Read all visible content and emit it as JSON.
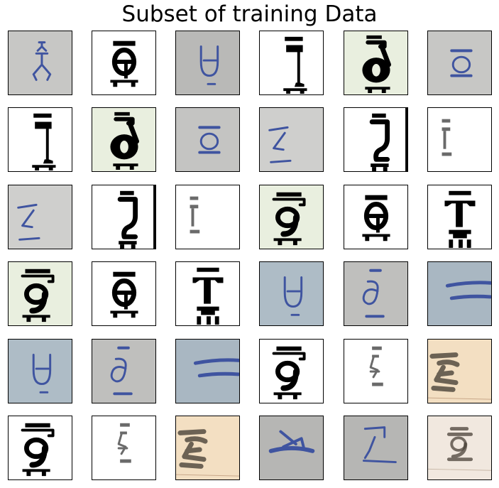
{
  "title": "Subset of training Data",
  "thumbnails": [
    {
      "bg": "#c7c7c5",
      "ink": "#3f54a0",
      "glyph": "stick-figure-icon"
    },
    {
      "bg": "#ffffff",
      "ink": "#000000",
      "glyph": "theta-print-icon"
    },
    {
      "bg": "#b9b9b7",
      "ink": "#3f54a0",
      "glyph": "u-bar-icon"
    },
    {
      "bg": "#ffffff",
      "ink": "#000000",
      "glyph": "seven-print-icon"
    },
    {
      "bg": "#e9efdf",
      "ink": "#000000",
      "glyph": "delta-print-icon"
    },
    {
      "bg": "#c7c7c5",
      "ink": "#3f54a0",
      "glyph": "o-bar-icon"
    },
    {
      "bg": "#ffffff",
      "ink": "#000000",
      "glyph": "seven-print-icon"
    },
    {
      "bg": "#e9efdf",
      "ink": "#000000",
      "glyph": "delta-print-icon"
    },
    {
      "bg": "#c4c4c2",
      "ink": "#3f54a0",
      "glyph": "o-bar-icon"
    },
    {
      "bg": "#cfcfcd",
      "ink": "#3f54a0",
      "glyph": "z-bar-icon"
    },
    {
      "bg": "#ffffff",
      "ink": "#000000",
      "glyph": "two-print-icon"
    },
    {
      "bg": "#ffffff",
      "ink": "#6a6a6a",
      "glyph": "gamma-light-icon"
    },
    {
      "bg": "#cfcfcd",
      "ink": "#3f54a0",
      "glyph": "z-bar-icon"
    },
    {
      "bg": "#ffffff",
      "ink": "#000000",
      "glyph": "two-print-icon"
    },
    {
      "bg": "#ffffff",
      "ink": "#6a6a6a",
      "glyph": "gamma-light-icon"
    },
    {
      "bg": "#e9efdf",
      "ink": "#000000",
      "glyph": "nine-print-icon"
    },
    {
      "bg": "#ffffff",
      "ink": "#000000",
      "glyph": "theta-print-icon"
    },
    {
      "bg": "#ffffff",
      "ink": "#000000",
      "glyph": "t-print-icon"
    },
    {
      "bg": "#e9efdf",
      "ink": "#000000",
      "glyph": "nine-print-icon"
    },
    {
      "bg": "#ffffff",
      "ink": "#000000",
      "glyph": "theta-print-icon"
    },
    {
      "bg": "#ffffff",
      "ink": "#000000",
      "glyph": "t-print-icon"
    },
    {
      "bg": "#aebcc6",
      "ink": "#3f54a0",
      "glyph": "u-bar-icon"
    },
    {
      "bg": "#bfbfbd",
      "ink": "#3f54a0",
      "glyph": "six-bar-icon"
    },
    {
      "bg": "#a9b7c2",
      "ink": "#3f54a0",
      "glyph": "equals-icon"
    },
    {
      "bg": "#aebcc6",
      "ink": "#3f54a0",
      "glyph": "u-bar-icon"
    },
    {
      "bg": "#bfbfbd",
      "ink": "#3f54a0",
      "glyph": "six-bar-icon"
    },
    {
      "bg": "#a9b7c2",
      "ink": "#3f54a0",
      "glyph": "equals-icon"
    },
    {
      "bg": "#ffffff",
      "ink": "#000000",
      "glyph": "nine-print-icon"
    },
    {
      "bg": "#ffffff",
      "ink": "#6a6a6a",
      "glyph": "s-light-icon"
    },
    {
      "bg": "#f3dfc2",
      "ink": "#4a4238",
      "glyph": "script-ink-icon"
    },
    {
      "bg": "#ffffff",
      "ink": "#000000",
      "glyph": "nine-print-icon"
    },
    {
      "bg": "#ffffff",
      "ink": "#6a6a6a",
      "glyph": "s-light-icon"
    },
    {
      "bg": "#f3dfc2",
      "ink": "#4a4238",
      "glyph": "script-ink-icon"
    },
    {
      "bg": "#b6b6b4",
      "ink": "#3f54a0",
      "glyph": "sigma-bar-icon"
    },
    {
      "bg": "#b6b6b4",
      "ink": "#3f54a0",
      "glyph": "seven-hand-icon"
    },
    {
      "bg": "#f1e8df",
      "ink": "#4a4238",
      "glyph": "nine-ink-icon"
    }
  ]
}
